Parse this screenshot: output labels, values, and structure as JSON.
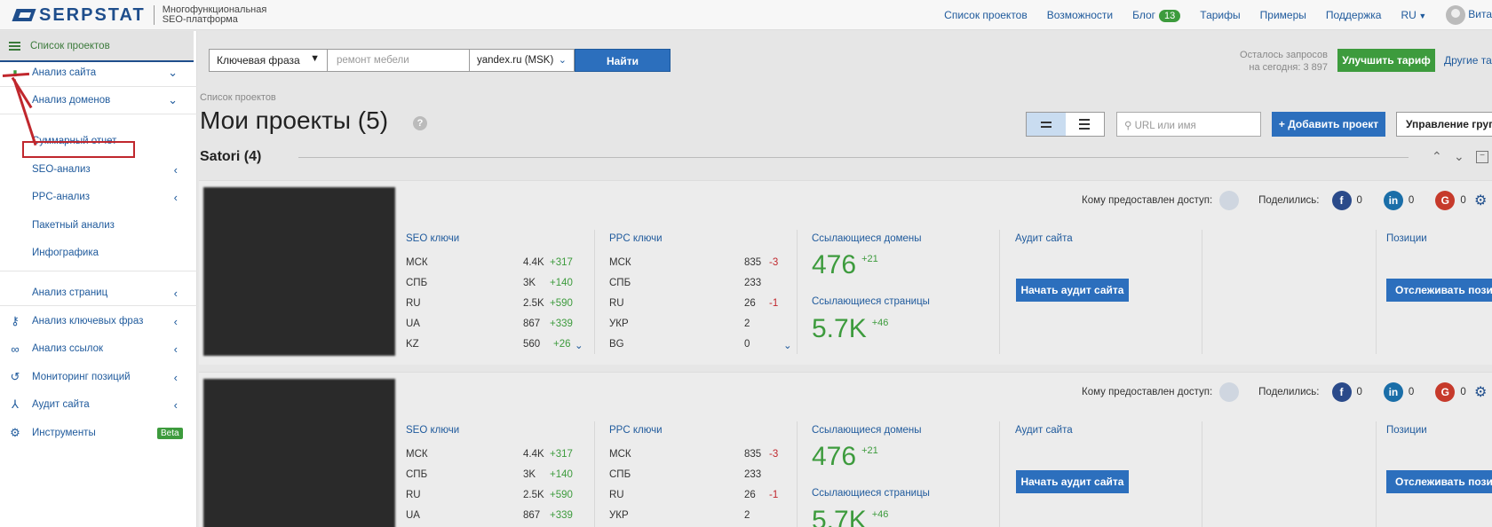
{
  "header": {
    "logo_text": "SERPSTAT",
    "logo_sub_line1": "Многофункциональная",
    "logo_sub_line2": "SEO-платформа",
    "nav": {
      "projects": "Список проектов",
      "features": "Возможности",
      "blog": "Блог",
      "blog_badge": "13",
      "pricing": "Тарифы",
      "examples": "Примеры",
      "support": "Поддержка",
      "lang": "RU",
      "user": "Вита"
    }
  },
  "sidebar": {
    "head": "Список проектов",
    "items": [
      {
        "label": "Анализ сайта"
      },
      {
        "label": "Анализ доменов"
      },
      {
        "label": "Суммарный отчет"
      },
      {
        "label": "SEO-анализ"
      },
      {
        "label": "PPC-анализ"
      },
      {
        "label": "Пакетный анализ"
      },
      {
        "label": "Инфографика"
      },
      {
        "label": "Анализ страниц"
      },
      {
        "label": "Анализ ключевых фраз"
      },
      {
        "label": "Анализ ссылок"
      },
      {
        "label": "Мониторинг позиций"
      },
      {
        "label": "Аудит сайта"
      },
      {
        "label": "Инструменты",
        "badge": "Beta"
      }
    ]
  },
  "search": {
    "type": "Ключевая фраза",
    "placeholder": "ремонт мебели",
    "engine": "yandex.ru (MSK)",
    "button": "Найти",
    "remaining_line1": "Осталось запросов",
    "remaining_line2": "на сегодня: 3 897",
    "upgrade": "Улучшить тариф",
    "other_plans": "Другие тар"
  },
  "page": {
    "breadcrumb": "Список проектов",
    "title": "Мои проекты (5)",
    "help": "?",
    "url_placeholder": "URL или имя",
    "add_project": "+ Добавить проект",
    "group_manage": "Управление груп",
    "group_name": "Satori (4)"
  },
  "card_labels": {
    "access": "Кому предоставлен доступ:",
    "shared": "Поделились:",
    "seo_keys": "SEO ключи",
    "ppc_keys": "PPC ключи",
    "ref_domains": "Ссылающиеся домены",
    "ref_pages": "Ссылающиеся страницы",
    "audit": "Аудит сайта",
    "positions": "Позиции",
    "start_audit": "Начать аудит сайта",
    "track_positions": "Отслеживать позиц"
  },
  "projects": [
    {
      "share_fb": "0",
      "share_in": "0",
      "share_g": "0",
      "seo": [
        {
          "region": "МСК",
          "value": "4.4K",
          "delta": "+317"
        },
        {
          "region": "СПБ",
          "value": "3K",
          "delta": "+140"
        },
        {
          "region": "RU",
          "value": "2.5K",
          "delta": "+590"
        },
        {
          "region": "UA",
          "value": "867",
          "delta": "+339"
        },
        {
          "region": "KZ",
          "value": "560",
          "delta": "+26"
        }
      ],
      "ppc": [
        {
          "region": "МСК",
          "value": "835",
          "delta": "-3"
        },
        {
          "region": "СПБ",
          "value": "233",
          "delta": ""
        },
        {
          "region": "RU",
          "value": "26",
          "delta": "-1"
        },
        {
          "region": "УКР",
          "value": "2",
          "delta": ""
        },
        {
          "region": "BG",
          "value": "0",
          "delta": ""
        }
      ],
      "domains": "476",
      "domains_delta": "+21",
      "pages": "5.7K",
      "pages_delta": "+46"
    },
    {
      "share_fb": "0",
      "share_in": "0",
      "share_g": "0",
      "seo": [
        {
          "region": "МСК",
          "value": "4.4K",
          "delta": "+317"
        },
        {
          "region": "СПБ",
          "value": "3K",
          "delta": "+140"
        },
        {
          "region": "RU",
          "value": "2.5K",
          "delta": "+590"
        },
        {
          "region": "UA",
          "value": "867",
          "delta": "+339"
        }
      ],
      "ppc": [
        {
          "region": "МСК",
          "value": "835",
          "delta": "-3"
        },
        {
          "region": "СПБ",
          "value": "233",
          "delta": ""
        },
        {
          "region": "RU",
          "value": "26",
          "delta": "-1"
        },
        {
          "region": "УКР",
          "value": "2",
          "delta": ""
        }
      ],
      "domains": "476",
      "domains_delta": "+21",
      "pages": "5.7K",
      "pages_delta": "+46"
    }
  ],
  "colors": {
    "brand": "#1f4e8c",
    "link": "#1f5a9c",
    "positive": "#3d9b3d",
    "negative": "#c0272d",
    "highlight": "#c0272d"
  }
}
